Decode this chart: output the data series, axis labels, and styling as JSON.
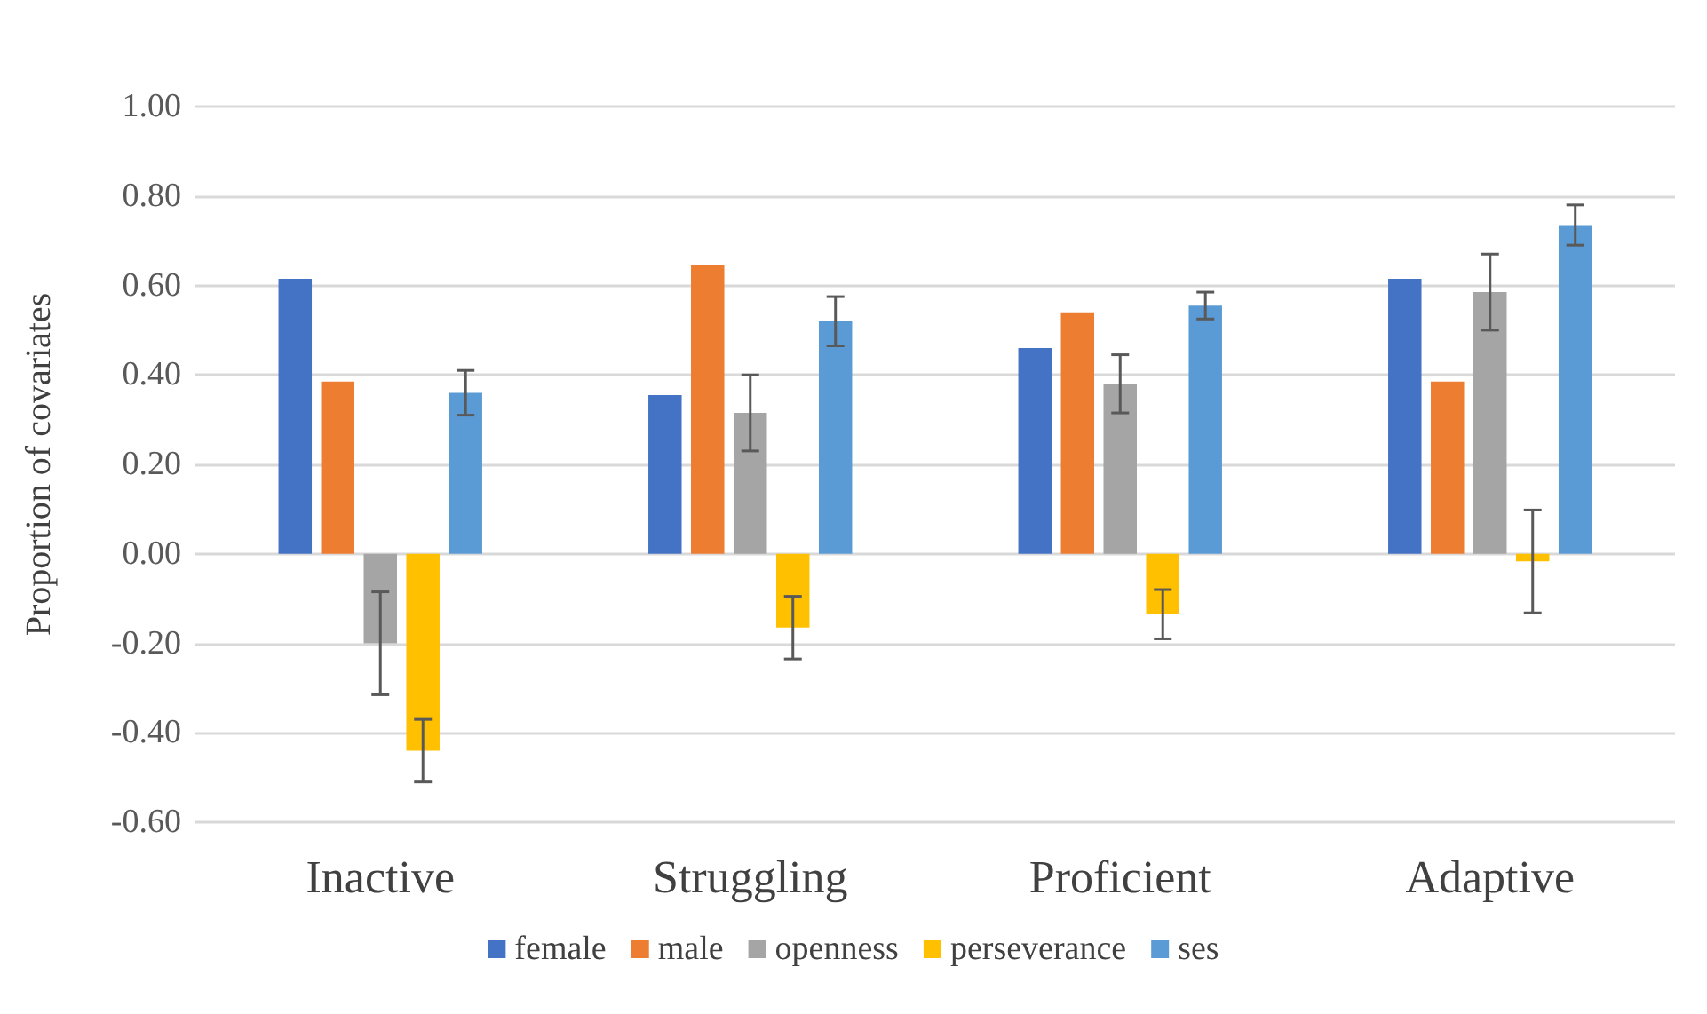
{
  "chart_data": {
    "type": "bar",
    "ylabel": "Proportion of covariates",
    "categories": [
      "Inactive",
      "Struggling",
      "Proficient",
      "Adaptive"
    ],
    "series": [
      {
        "name": "female",
        "color": "#4472c4",
        "values": [
          0.615,
          0.355,
          0.46,
          0.615
        ]
      },
      {
        "name": "male",
        "color": "#ed7d31",
        "values": [
          0.385,
          0.645,
          0.54,
          0.385
        ]
      },
      {
        "name": "openness",
        "color": "#a5a5a5",
        "values": [
          -0.2,
          0.315,
          0.38,
          0.585
        ],
        "errors": [
          0.115,
          0.085,
          0.065,
          0.085
        ]
      },
      {
        "name": "perseverance",
        "color": "#ffc000",
        "values": [
          -0.44,
          -0.165,
          -0.135,
          -0.017
        ],
        "errors": [
          0.07,
          0.07,
          0.055,
          0.115
        ]
      },
      {
        "name": "ses",
        "color": "#5b9bd5",
        "values": [
          0.36,
          0.52,
          0.555,
          0.735
        ],
        "errors": [
          0.05,
          0.055,
          0.03,
          0.045
        ]
      }
    ],
    "ylim": [
      -0.6,
      1.0
    ],
    "yticks": [
      {
        "value": -0.6,
        "label": "-0.60"
      },
      {
        "value": -0.4,
        "label": "-0.40"
      },
      {
        "value": -0.2,
        "label": "-0.20"
      },
      {
        "value": 0,
        "label": "0.00"
      },
      {
        "value": 0.2,
        "label": "0.20"
      },
      {
        "value": 0.4,
        "label": "0.40"
      },
      {
        "value": 0.6,
        "label": "0.60"
      },
      {
        "value": 0.8,
        "label": "0.80"
      },
      {
        "value": 1.0,
        "label": "1.00"
      }
    ],
    "grid": "y",
    "legend": "bottom"
  }
}
